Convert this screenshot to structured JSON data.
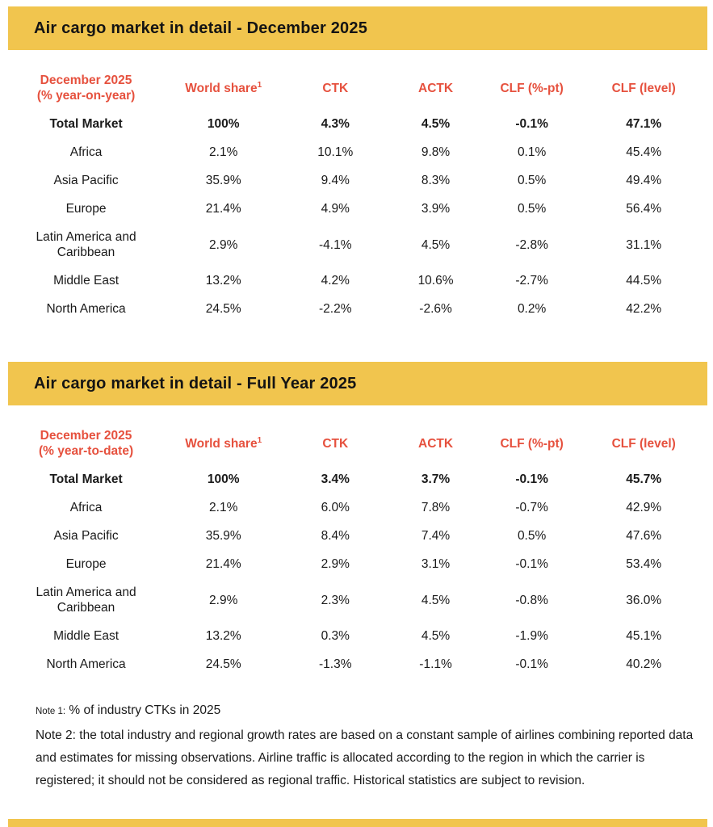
{
  "theme": {
    "accent_yellow": "#F1C54E",
    "accent_red": "#E6513E"
  },
  "sections": [
    {
      "banner_title": "Air cargo market in detail - December 2025",
      "columns": {
        "period_line1": "December 2025",
        "period_line2": "(% year-on-year)",
        "world_share": "World share",
        "world_share_footnote": "1",
        "ctk": "CTK",
        "actk": "ACTK",
        "clf_pt": "CLF (%-pt)",
        "clf_level": "CLF (level)"
      },
      "rows": [
        {
          "region": "Total Market",
          "bold": true,
          "world_share": "100%",
          "ctk": "4.3%",
          "actk": "4.5%",
          "clf_pt": "-0.1%",
          "clf_level": "47.1%"
        },
        {
          "region": "Africa",
          "bold": false,
          "world_share": "2.1%",
          "ctk": "10.1%",
          "actk": "9.8%",
          "clf_pt": "0.1%",
          "clf_level": "45.4%"
        },
        {
          "region": "Asia Pacific",
          "bold": false,
          "world_share": "35.9%",
          "ctk": "9.4%",
          "actk": "8.3%",
          "clf_pt": "0.5%",
          "clf_level": "49.4%"
        },
        {
          "region": "Europe",
          "bold": false,
          "world_share": "21.4%",
          "ctk": "4.9%",
          "actk": "3.9%",
          "clf_pt": "0.5%",
          "clf_level": "56.4%"
        },
        {
          "region": "Latin America and Caribbean",
          "bold": false,
          "world_share": "2.9%",
          "ctk": "-4.1%",
          "actk": "4.5%",
          "clf_pt": "-2.8%",
          "clf_level": "31.1%"
        },
        {
          "region": "Middle East",
          "bold": false,
          "world_share": "13.2%",
          "ctk": "4.2%",
          "actk": "10.6%",
          "clf_pt": "-2.7%",
          "clf_level": "44.5%"
        },
        {
          "region": "North America",
          "bold": false,
          "world_share": "24.5%",
          "ctk": "-2.2%",
          "actk": "-2.6%",
          "clf_pt": "0.2%",
          "clf_level": "42.2%"
        }
      ]
    },
    {
      "banner_title": "Air cargo market in detail - Full Year 2025",
      "columns": {
        "period_line1": "December 2025",
        "period_line2": "(% year-to-date)",
        "world_share": "World share",
        "world_share_footnote": "1",
        "ctk": "CTK",
        "actk": "ACTK",
        "clf_pt": "CLF (%-pt)",
        "clf_level": "CLF (level)"
      },
      "rows": [
        {
          "region": "Total Market",
          "bold": true,
          "world_share": "100%",
          "ctk": "3.4%",
          "actk": "3.7%",
          "clf_pt": "-0.1%",
          "clf_level": "45.7%"
        },
        {
          "region": "Africa",
          "bold": false,
          "world_share": "2.1%",
          "ctk": "6.0%",
          "actk": "7.8%",
          "clf_pt": "-0.7%",
          "clf_level": "42.9%"
        },
        {
          "region": "Asia Pacific",
          "bold": false,
          "world_share": "35.9%",
          "ctk": "8.4%",
          "actk": "7.4%",
          "clf_pt": "0.5%",
          "clf_level": "47.6%"
        },
        {
          "region": "Europe",
          "bold": false,
          "world_share": "21.4%",
          "ctk": "2.9%",
          "actk": "3.1%",
          "clf_pt": "-0.1%",
          "clf_level": "53.4%"
        },
        {
          "region": "Latin America and Caribbean",
          "bold": false,
          "world_share": "2.9%",
          "ctk": "2.3%",
          "actk": "4.5%",
          "clf_pt": "-0.8%",
          "clf_level": "36.0%"
        },
        {
          "region": "Middle East",
          "bold": false,
          "world_share": "13.2%",
          "ctk": "0.3%",
          "actk": "4.5%",
          "clf_pt": "-1.9%",
          "clf_level": "45.1%"
        },
        {
          "region": "North America",
          "bold": false,
          "world_share": "24.5%",
          "ctk": "-1.3%",
          "actk": "-1.1%",
          "clf_pt": "-0.1%",
          "clf_level": "40.2%"
        }
      ]
    }
  ],
  "notes": {
    "note1_label": "Note 1:",
    "note1_text": "% of industry CTKs in 2025",
    "note2": "Note 2: the total industry and regional growth rates are based on a constant sample of airlines combining reported data and estimates for missing observations. Airline traffic is allocated according to the region in which the carrier is registered; it should not be considered as regional traffic. Historical statistics are subject to revision."
  }
}
